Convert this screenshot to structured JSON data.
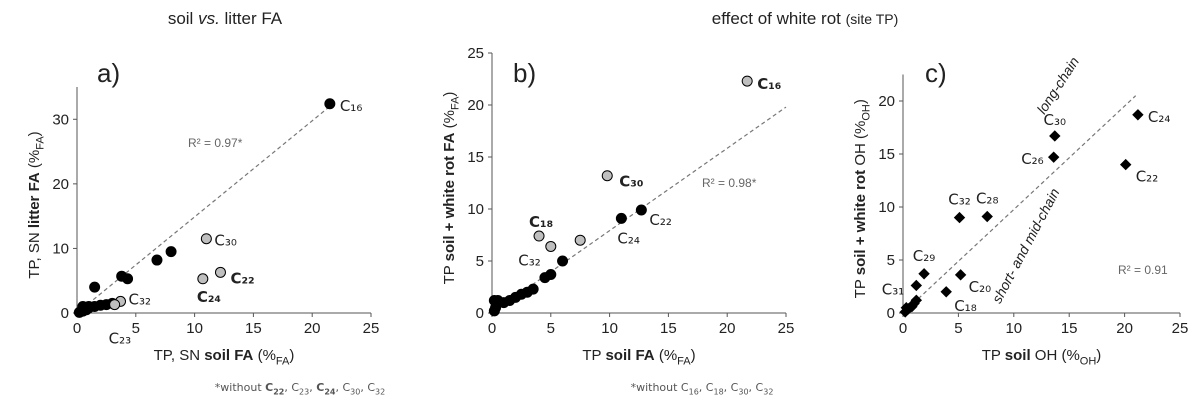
{
  "headers": [
    {
      "parts": [
        {
          "text": "soil "
        },
        {
          "text": "vs.",
          "style": "italic"
        },
        {
          "text": " litter FA"
        }
      ]
    },
    {
      "parts": [
        {
          "text": "effect of white rot "
        },
        {
          "text": "(site TP)",
          "style": "small"
        }
      ]
    }
  ],
  "chart_data": [
    {
      "type": "scatter",
      "panel_label": "a)",
      "xlim": [
        0,
        25
      ],
      "xticks": [
        0,
        5,
        10,
        15,
        20,
        25
      ],
      "ylim": [
        0,
        35
      ],
      "yticks": [
        0,
        10,
        20,
        30
      ],
      "xlabel": [
        {
          "text": "TP, SN "
        },
        {
          "text": "soil FA",
          "style": "bold"
        },
        {
          "text": " (%"
        },
        {
          "text": "FA",
          "style": "sub"
        },
        {
          "text": ")"
        }
      ],
      "ylabel": [
        {
          "text": "TP, SN "
        },
        {
          "text": "litter FA",
          "style": "bold"
        },
        {
          "text": " (%"
        },
        {
          "text": "FA",
          "style": "sub"
        },
        {
          "text": ")"
        }
      ],
      "fit_line": {
        "x": [
          0,
          21.5
        ],
        "y": [
          0,
          32
        ]
      },
      "r2": "R² = 0.97*",
      "footnote": [
        {
          "text": "*without "
        },
        {
          "text": "C",
          "style": "bold"
        },
        {
          "text": "22",
          "style": "bold-sub"
        },
        {
          "text": ", C"
        },
        {
          "text": "23",
          "style": "sub"
        },
        {
          "text": ", "
        },
        {
          "text": "C",
          "style": "bold"
        },
        {
          "text": "24",
          "style": "bold-sub"
        },
        {
          "text": ", C"
        },
        {
          "text": "30",
          "style": "sub"
        },
        {
          "text": ", C"
        },
        {
          "text": "32",
          "style": "sub"
        }
      ],
      "series": [
        {
          "color": "#000000",
          "marker": "circle",
          "x": [
            0.2,
            0.5,
            0.8,
            1,
            1.5,
            2,
            2.5,
            3,
            0.5,
            1,
            1.5,
            3.8,
            4.3,
            6.8,
            8,
            21.5
          ],
          "values": [
            0.1,
            0.3,
            0.5,
            0.8,
            1,
            1.2,
            1.3,
            1.5,
            1,
            1,
            4,
            5.7,
            5.3,
            8.2,
            9.5,
            32.4
          ],
          "labels": [
            null,
            null,
            null,
            null,
            null,
            null,
            null,
            null,
            null,
            null,
            null,
            null,
            null,
            null,
            null,
            "C₁₆"
          ],
          "label_colors": [
            null,
            null,
            null,
            null,
            null,
            null,
            null,
            null,
            null,
            null,
            null,
            null,
            null,
            null,
            null,
            "#8c8c8c"
          ],
          "label_bold": [
            false,
            false,
            false,
            false,
            false,
            false,
            false,
            false,
            false,
            false,
            false,
            false,
            false,
            false,
            false,
            false
          ]
        },
        {
          "color": "#bfbfbf",
          "marker": "circle",
          "x": [
            11,
            12.2,
            10.7,
            3.7,
            3.2
          ],
          "values": [
            11.5,
            6.3,
            5.3,
            1.8,
            1.3
          ],
          "labels": [
            "C₃₀",
            "C₂₂",
            "C₂₄",
            "C₃₂",
            "C₂₃"
          ],
          "label_colors": [
            "#8c8c8c",
            "#000000",
            "#000000",
            "#8c8c8c",
            "#8c8c8c"
          ],
          "label_bold": [
            false,
            true,
            true,
            false,
            false
          ]
        }
      ]
    },
    {
      "type": "scatter",
      "panel_label": "b)",
      "xlim": [
        0,
        25
      ],
      "xticks": [
        0,
        5,
        10,
        15,
        20,
        25
      ],
      "ylim": [
        0,
        25
      ],
      "yticks": [
        0,
        5,
        10,
        15,
        20,
        25
      ],
      "xlabel": [
        {
          "text": "TP "
        },
        {
          "text": "soil FA",
          "style": "bold"
        },
        {
          "text": " (%"
        },
        {
          "text": "FA",
          "style": "sub"
        },
        {
          "text": ")"
        }
      ],
      "ylabel": [
        {
          "text": "TP "
        },
        {
          "text": "soil + white rot FA",
          "style": "bold"
        },
        {
          "text": " (%"
        },
        {
          "text": "FA",
          "style": "sub"
        },
        {
          "text": ")"
        }
      ],
      "fit_line": {
        "x": [
          0,
          25
        ],
        "y": [
          0,
          19.8
        ]
      },
      "r2": "R² = 0.98*",
      "footnote": [
        {
          "text": "*without C"
        },
        {
          "text": "16",
          "style": "sub"
        },
        {
          "text": ", C"
        },
        {
          "text": "18",
          "style": "sub"
        },
        {
          "text": ", C"
        },
        {
          "text": "30",
          "style": "sub"
        },
        {
          "text": ", C"
        },
        {
          "text": "32",
          "style": "sub"
        }
      ],
      "series": [
        {
          "color": "#000000",
          "marker": "circle",
          "x": [
            0.2,
            0.3,
            0.5,
            0.2,
            1,
            1.5,
            2,
            2.5,
            3,
            3.5,
            4.5,
            5,
            6,
            11,
            12.7
          ],
          "values": [
            0.2,
            0.5,
            1.2,
            1.2,
            1,
            1.2,
            1.5,
            1.8,
            2,
            2.3,
            3.4,
            3.7,
            5,
            9.1,
            9.9
          ],
          "labels": [
            null,
            null,
            null,
            null,
            null,
            null,
            null,
            null,
            null,
            null,
            null,
            null,
            null,
            "C₂₄",
            "C₂₂"
          ],
          "label_colors": [
            null,
            null,
            null,
            null,
            null,
            null,
            null,
            null,
            null,
            null,
            null,
            null,
            null,
            "#8c8c8c",
            "#8c8c8c"
          ],
          "label_bold": [
            false,
            false,
            false,
            false,
            false,
            false,
            false,
            false,
            false,
            false,
            false,
            false,
            false,
            false,
            false
          ]
        },
        {
          "color": "#bfbfbf",
          "marker": "circle",
          "x": [
            21.7,
            9.8,
            4,
            5,
            7.5
          ],
          "values": [
            22.3,
            13.2,
            7.4,
            6.4,
            7
          ],
          "labels": [
            "C₁₆",
            "C₃₀",
            "C₁₈",
            "C₃₂",
            null
          ],
          "label_colors": [
            "#000000",
            "#000000",
            "#000000",
            "#000000",
            null
          ],
          "label_bold": [
            true,
            true,
            true,
            false,
            false
          ]
        }
      ]
    },
    {
      "type": "scatter",
      "panel_label": "c)",
      "xlim": [
        0,
        25
      ],
      "xticks": [
        0,
        5,
        10,
        15,
        20,
        25
      ],
      "ylim": [
        0,
        22.5
      ],
      "yticks": [
        0,
        5,
        10,
        15,
        20
      ],
      "xlabel": [
        {
          "text": "TP "
        },
        {
          "text": "soil",
          "style": "bold"
        },
        {
          "text": " OH (%"
        },
        {
          "text": "OH",
          "style": "sub"
        },
        {
          "text": ")"
        }
      ],
      "ylabel": [
        {
          "text": "TP "
        },
        {
          "text": "soil + white rot",
          "style": "bold"
        },
        {
          "text": " OH (%"
        },
        {
          "text": "OH",
          "style": "sub"
        },
        {
          "text": ")"
        }
      ],
      "fit_line": {
        "x": [
          0,
          21
        ],
        "y": [
          0,
          20.5
        ]
      },
      "r2": "R² = 0.91",
      "region_labels": [
        {
          "text": "long-chain",
          "color": "#77933c"
        },
        {
          "text": "short- and mid-chain",
          "color": "#a0282d"
        }
      ],
      "series": [
        {
          "color": "#000000",
          "marker": "diamond",
          "x": [
            21.2,
            20.1,
            13.7,
            13.6,
            5.1,
            7.6,
            1.9,
            5.2,
            3.9,
            1.2,
            0.2,
            0.5,
            0.8,
            1,
            1.2,
            0.3
          ],
          "values": [
            18.7,
            14,
            16.7,
            14.7,
            9,
            9.1,
            3.7,
            3.6,
            2,
            2.6,
            0.1,
            0.4,
            0.6,
            0.9,
            1.2,
            0.5
          ],
          "labels": [
            "C₂₄",
            "C₂₂",
            "C₃₀",
            "C₂₆",
            "C₃₂",
            "C₂₈",
            "C₂₉",
            "C₂₀",
            "C₁₈",
            "C₃₁",
            null,
            null,
            null,
            null,
            null,
            null
          ],
          "label_colors": [
            "#a0282d",
            "#a0282d",
            "#77933c",
            "#77933c",
            "#77933c",
            "#77933c",
            "#77933c",
            "#a0282d",
            "#a0282d",
            "#77933c",
            null,
            null,
            null,
            null,
            null,
            null
          ],
          "label_bold": [
            false,
            false,
            false,
            false,
            false,
            false,
            false,
            false,
            false,
            false,
            false,
            false,
            false,
            false,
            false,
            false
          ]
        }
      ]
    }
  ]
}
